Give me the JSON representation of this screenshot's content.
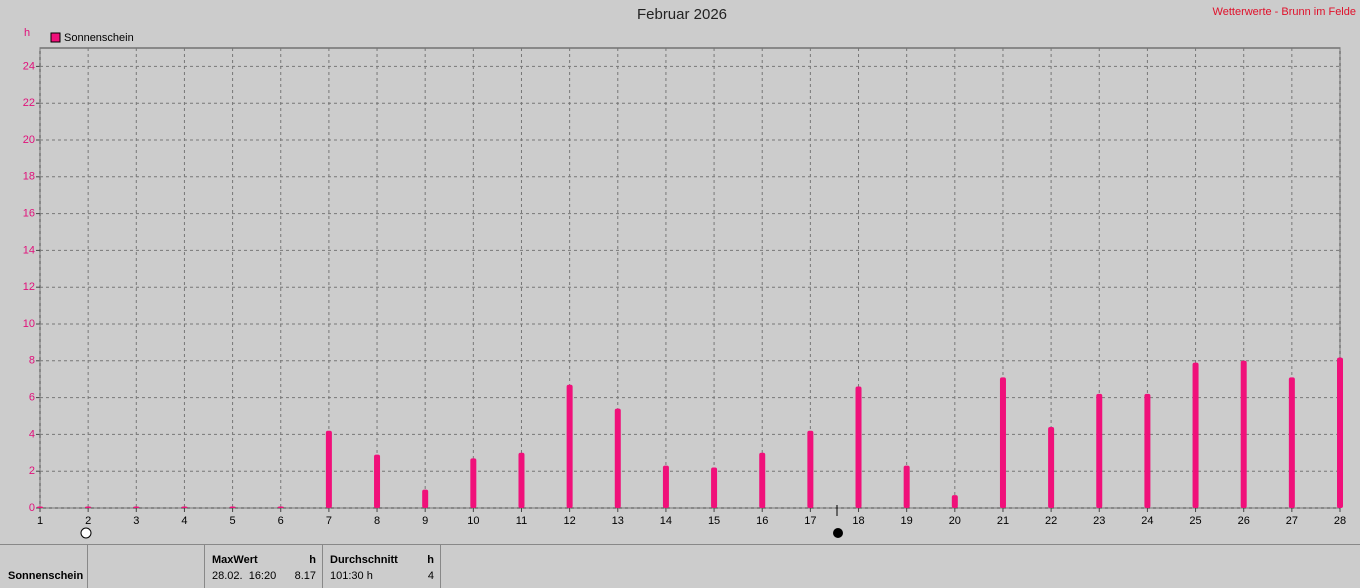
{
  "chart_data": {
    "type": "bar",
    "title": "Februar 2026",
    "source": "Wetterwerte - Brunn im Felde",
    "y_label": "h",
    "series": [
      {
        "name": "Sonnenschein",
        "color": "#f0107a",
        "values": [
          0,
          0,
          0,
          0,
          0,
          0,
          4.2,
          2.9,
          1.0,
          2.7,
          3.0,
          6.7,
          5.4,
          2.3,
          2.2,
          3.0,
          4.2,
          6.6,
          2.3,
          0.7,
          7.1,
          4.4,
          6.2,
          6.2,
          7.9,
          8.0,
          7.1,
          8.17
        ]
      }
    ],
    "x": [
      1,
      2,
      3,
      4,
      5,
      6,
      7,
      8,
      9,
      10,
      11,
      12,
      13,
      14,
      15,
      16,
      17,
      18,
      19,
      20,
      21,
      22,
      23,
      24,
      25,
      26,
      27,
      28
    ],
    "xlim": [
      1,
      28
    ],
    "xticks": [
      1,
      2,
      3,
      4,
      5,
      6,
      7,
      8,
      9,
      10,
      11,
      12,
      13,
      14,
      15,
      16,
      17,
      18,
      19,
      20,
      21,
      22,
      23,
      24,
      25,
      26,
      27,
      28
    ],
    "ylim": [
      0,
      25
    ],
    "yticks": [
      0,
      2,
      4,
      6,
      8,
      10,
      12,
      14,
      16,
      18,
      20,
      22,
      24
    ],
    "grid": true
  },
  "footer": {
    "name": "Sonnenschein",
    "max_label": "MaxWert",
    "max_unit": "h",
    "max_time": "28.02.  16:20",
    "max_value": "8.17",
    "avg_label": "Durchschnitt",
    "avg_unit": "h",
    "avg_value": "101:30 h",
    "avg_count": "4"
  }
}
